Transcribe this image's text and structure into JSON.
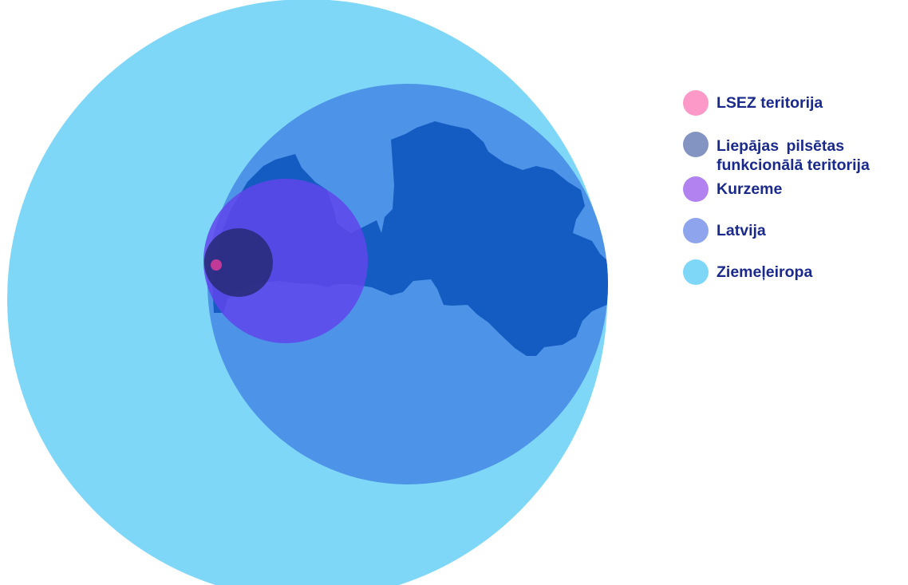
{
  "legend": {
    "items": [
      {
        "label": "LSEZ teritorija",
        "color": "#fd99c8"
      },
      {
        "label_line1": "Liepājas pilsētas",
        "label_line2": "funkcionālā teritorija",
        "color": "#8393c2"
      },
      {
        "label": "Kurzeme",
        "color": "#b283f0"
      },
      {
        "label": "Latvija",
        "color": "#8ea5ee"
      },
      {
        "label": "Ziemeļeiropa",
        "color": "#7fd7f8"
      }
    ]
  },
  "diagram": {
    "circles": [
      {
        "name": "ziemeleiropa",
        "color": "#7fd7f8"
      },
      {
        "name": "latvija",
        "color": "#4d93e8"
      },
      {
        "name": "kurzeme",
        "color": "#6045ec"
      },
      {
        "name": "liepajas-funkcionala-teritorija",
        "color": "#2a2e7e"
      },
      {
        "name": "lsez-teritorija",
        "color": "#c23a98"
      }
    ],
    "map_color": "#145cc2"
  }
}
